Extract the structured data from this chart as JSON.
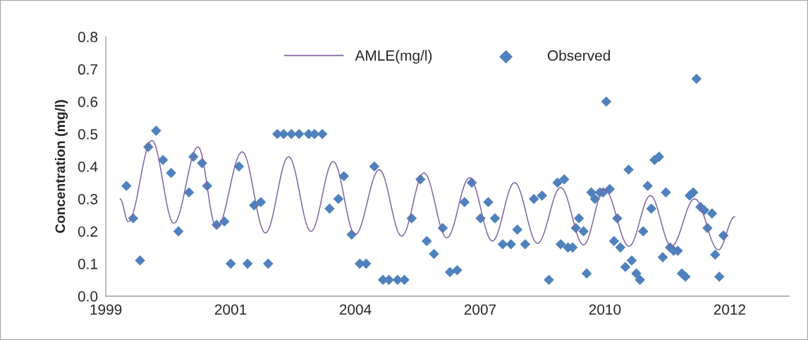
{
  "chart_data": {
    "type": "scatter",
    "ylabel": "Concentration (mg/l)",
    "xlim": [
      "1999-02-06",
      "2014-02-06"
    ],
    "xticks": [
      {
        "value": "1999-02-06",
        "label": "1999"
      },
      {
        "value": "2001-11-02",
        "label": "2001"
      },
      {
        "value": "2004-07-29",
        "label": "2004"
      },
      {
        "value": "2007-04-25",
        "label": "2007"
      },
      {
        "value": "2010-01-19",
        "label": "2010"
      },
      {
        "value": "2012-10-15",
        "label": "2012"
      }
    ],
    "ylim": [
      0,
      0.8
    ],
    "yticks": [
      {
        "value": 0,
        "label": "0.0"
      },
      0.1,
      0.2,
      0.3,
      0.4,
      0.5,
      0.6,
      0.7,
      0.8
    ],
    "legend": "top",
    "series": [
      {
        "name": "AMLE(mg/l)",
        "type": "line",
        "color": "#8064a2",
        "line_style": "solid",
        "x": [
          "1999-05-31",
          "1999-08-04",
          "2000-02-10",
          "2000-08-04",
          "2001-02-14",
          "2001-07-13",
          "2002-02-03",
          "2002-08-08",
          "2003-02-10",
          "2003-08-08",
          "2004-02-03",
          "2004-07-28",
          "2005-02-06",
          "2005-08-04",
          "2006-01-30",
          "2006-08-01",
          "2007-01-30",
          "2007-08-01",
          "2008-01-26",
          "2008-07-28",
          "2009-01-30",
          "2009-08-01",
          "2010-01-15",
          "2010-08-01",
          "2011-01-19",
          "2011-07-06",
          "2012-01-08",
          "2012-07-17",
          "2012-11-25"
        ],
        "values": [
          0.3,
          0.23,
          0.48,
          0.225,
          0.46,
          0.21,
          0.445,
          0.195,
          0.43,
          0.2,
          0.415,
          0.19,
          0.39,
          0.185,
          0.38,
          0.18,
          0.365,
          0.17,
          0.35,
          0.163,
          0.335,
          0.158,
          0.33,
          0.154,
          0.31,
          0.154,
          0.3,
          0.143,
          0.245
        ]
      },
      {
        "name": "Observed",
        "color": "#4f81bd",
        "marker": "diamond",
        "x": [
          "1999-07-21",
          "1999-09-13",
          "1999-11-07",
          "2000-01-12",
          "2000-03-15",
          "2000-05-09",
          "2000-07-13",
          "2000-09-10",
          "2000-12-03",
          "2001-01-08",
          "2001-03-18",
          "2001-04-28",
          "2001-07-13",
          "2001-09-13",
          "2001-11-03",
          "2002-01-08",
          "2002-03-18",
          "2002-05-09",
          "2002-07-02",
          "2002-08-30",
          "2002-11-11",
          "2003-01-01",
          "2003-03-04",
          "2003-05-05",
          "2003-07-21",
          "2003-09-06",
          "2003-11-07",
          "2004-01-04",
          "2004-03-15",
          "2004-04-28",
          "2004-06-29",
          "2004-09-02",
          "2004-10-23",
          "2004-12-28",
          "2005-03-07",
          "2005-04-24",
          "2005-07-02",
          "2005-08-26",
          "2005-10-23",
          "2006-01-01",
          "2006-02-21",
          "2006-04-20",
          "2006-06-29",
          "2006-08-26",
          "2006-10-23",
          "2006-12-21",
          "2007-02-17",
          "2007-04-28",
          "2007-06-29",
          "2007-08-22",
          "2007-10-23",
          "2007-12-28",
          "2008-02-17",
          "2008-04-20",
          "2008-06-29",
          "2008-09-02",
          "2008-10-27",
          "2009-01-04",
          "2009-01-30",
          "2009-02-27",
          "2009-03-29",
          "2009-05-05",
          "2009-05-31",
          "2009-06-25",
          "2009-08-01",
          "2009-08-26",
          "2009-10-02",
          "2009-10-31",
          "2009-12-10",
          "2010-01-04",
          "2010-01-30",
          "2010-02-27",
          "2010-04-02",
          "2010-04-28",
          "2010-05-23",
          "2010-07-02",
          "2010-07-28",
          "2010-08-22",
          "2010-09-28",
          "2010-10-27",
          "2010-11-22",
          "2010-12-28",
          "2011-01-26",
          "2011-02-21",
          "2011-03-29",
          "2011-04-28",
          "2011-05-23",
          "2011-06-25",
          "2011-07-24",
          "2011-08-26",
          "2011-09-28",
          "2011-10-27",
          "2011-11-29",
          "2011-12-28",
          "2012-01-23",
          "2012-02-24",
          "2012-03-25",
          "2012-04-20",
          "2012-05-27",
          "2012-06-21",
          "2012-07-24",
          "2012-08-26"
        ],
        "values": [
          0.34,
          0.24,
          0.11,
          0.46,
          0.51,
          0.42,
          0.38,
          0.2,
          0.32,
          0.43,
          0.41,
          0.34,
          0.22,
          0.23,
          0.1,
          0.4,
          0.1,
          0.28,
          0.29,
          0.1,
          0.5,
          0.5,
          0.5,
          0.5,
          0.5,
          0.5,
          0.5,
          0.27,
          0.3,
          0.37,
          0.19,
          0.1,
          0.1,
          0.4,
          0.05,
          0.05,
          0.05,
          0.05,
          0.24,
          0.36,
          0.17,
          0.13,
          0.21,
          0.074,
          0.08,
          0.29,
          0.35,
          0.24,
          0.29,
          0.24,
          0.16,
          0.16,
          0.205,
          0.16,
          0.3,
          0.31,
          0.05,
          0.35,
          0.16,
          0.36,
          0.15,
          0.15,
          0.21,
          0.24,
          0.2,
          0.07,
          0.32,
          0.3,
          0.32,
          0.32,
          0.6,
          0.33,
          0.17,
          0.24,
          0.15,
          0.09,
          0.39,
          0.11,
          0.07,
          0.05,
          0.2,
          0.34,
          0.27,
          0.42,
          0.43,
          0.12,
          0.32,
          0.15,
          0.14,
          0.14,
          0.07,
          0.06,
          0.31,
          0.32,
          0.67,
          0.275,
          0.265,
          0.21,
          0.255,
          0.128,
          0.06,
          0.187
        ]
      }
    ]
  }
}
